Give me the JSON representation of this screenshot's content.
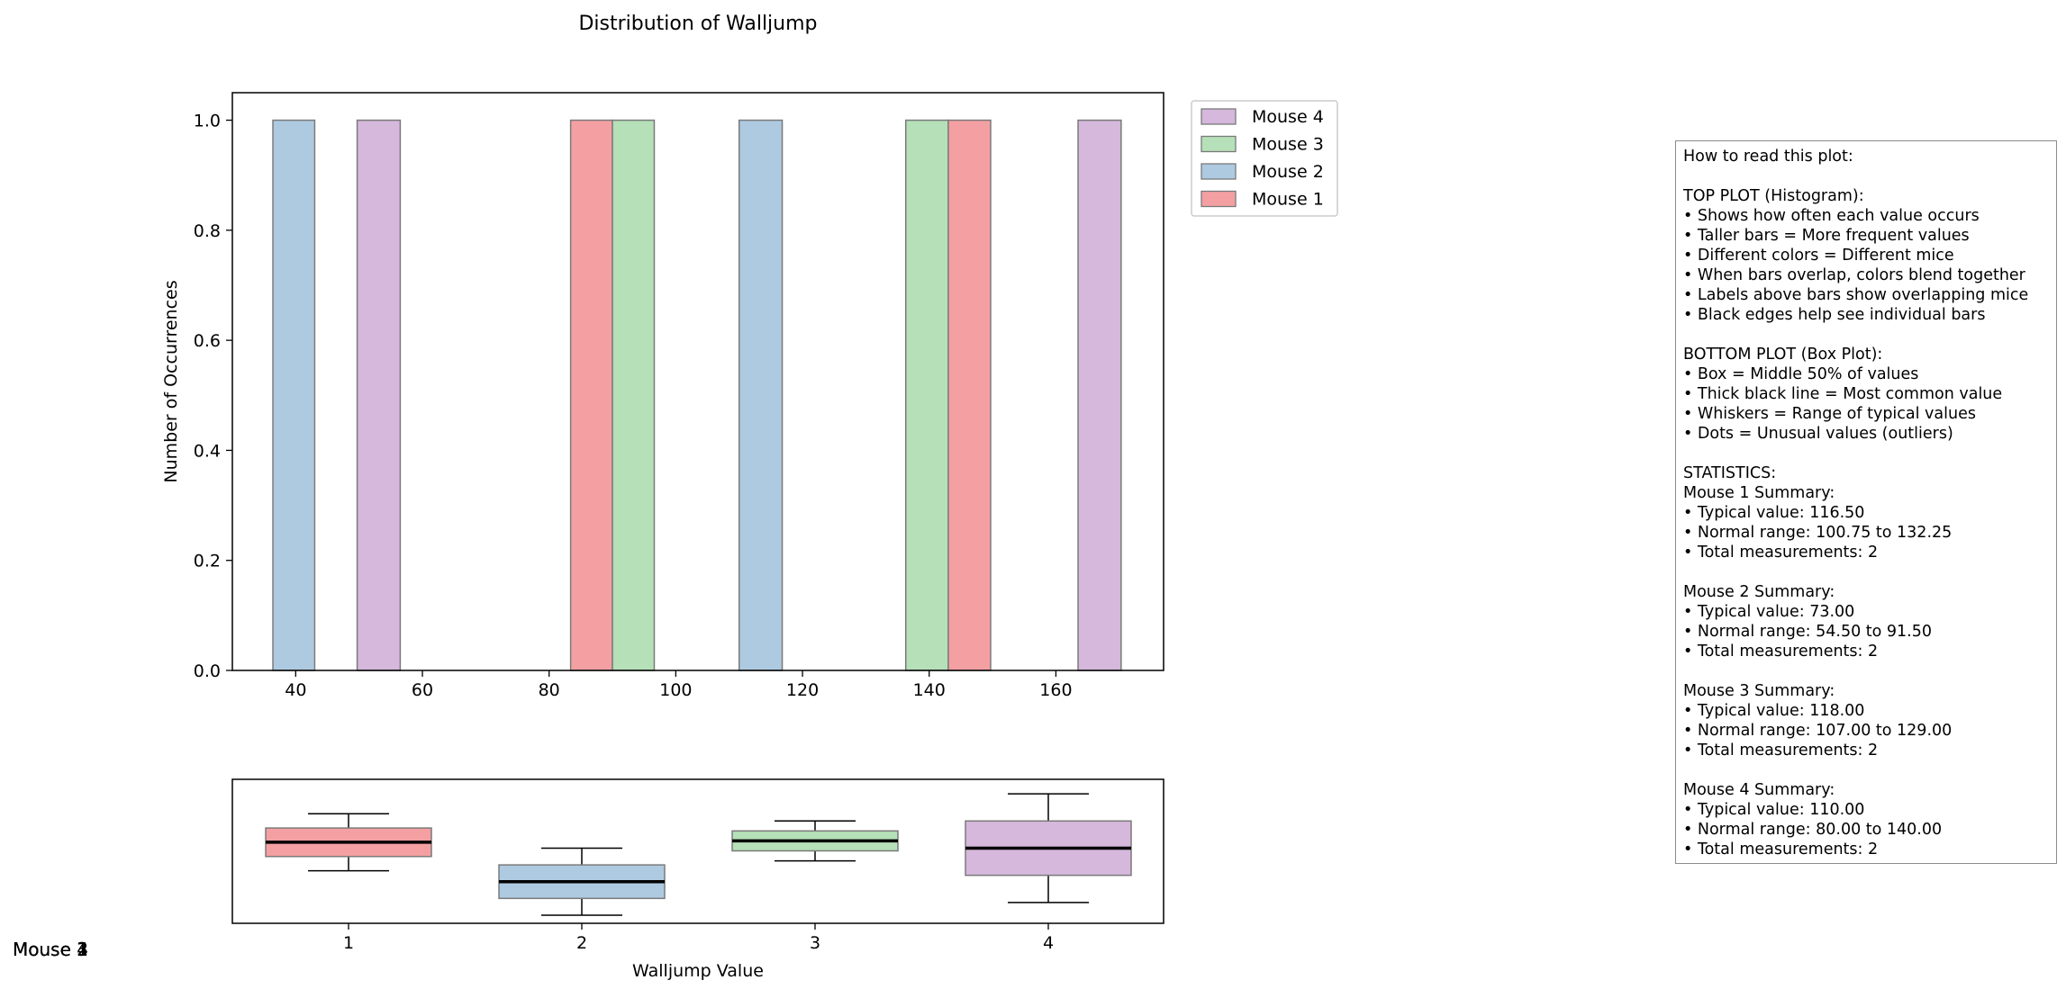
{
  "chart_data": [
    {
      "type": "bar",
      "title": "Distribution of Walljump",
      "ylabel": "Number of Occurrences",
      "xlim": [
        30,
        177
      ],
      "ylim": [
        0,
        1.05
      ],
      "xticks": [
        40,
        60,
        80,
        100,
        120,
        140,
        160
      ],
      "yticks": [
        "0.0",
        "0.2",
        "0.4",
        "0.6",
        "0.8",
        "1.0"
      ],
      "legend": {
        "placement": "outside top-right",
        "entries": [
          "Mouse 4",
          "Mouse 3",
          "Mouse 2",
          "Mouse 1"
        ]
      },
      "series": [
        {
          "name": "Mouse 1",
          "color": "#f4a0a3",
          "bars": [
            {
              "x0": 83.4,
              "x1": 90.0,
              "value": 1
            },
            {
              "x0": 143.0,
              "x1": 149.7,
              "value": 1
            }
          ]
        },
        {
          "name": "Mouse 2",
          "color": "#aecae1",
          "bars": [
            {
              "x0": 36.4,
              "x1": 43.0,
              "value": 1
            },
            {
              "x0": 110.0,
              "x1": 116.8,
              "value": 1
            }
          ]
        },
        {
          "name": "Mouse 3",
          "color": "#b5e0b8",
          "bars": [
            {
              "x0": 90.0,
              "x1": 96.6,
              "value": 1
            },
            {
              "x0": 136.3,
              "x1": 143.0,
              "value": 1
            }
          ]
        },
        {
          "name": "Mouse 4",
          "color": "#d5b8db",
          "bars": [
            {
              "x0": 49.7,
              "x1": 56.5,
              "value": 1
            },
            {
              "x0": 163.5,
              "x1": 170.3,
              "value": 1
            }
          ]
        }
      ]
    },
    {
      "type": "box",
      "xlabel": "Walljump Value",
      "categories": [
        "1",
        "2",
        "3",
        "4"
      ],
      "boxes": [
        {
          "name": "Mouse 1",
          "color": "#f4a0a3",
          "whisker_low": 85,
          "q1": 100.75,
          "median": 116.5,
          "q3": 132.25,
          "whisker_high": 148
        },
        {
          "name": "Mouse 2",
          "color": "#aecae1",
          "whisker_low": 36,
          "q1": 54.5,
          "median": 73,
          "q3": 91.5,
          "whisker_high": 110
        },
        {
          "name": "Mouse 3",
          "color": "#b5e0b8",
          "whisker_low": 96,
          "q1": 107,
          "median": 118,
          "q3": 129,
          "whisker_high": 140
        },
        {
          "name": "Mouse 4",
          "color": "#d5b8db",
          "whisker_low": 50,
          "q1": 80,
          "median": 110,
          "q3": 140,
          "whisker_high": 170
        }
      ],
      "ylim": [
        27,
        186
      ]
    }
  ],
  "info_lines": [
    "How to read this plot:",
    "",
    "TOP PLOT (Histogram):",
    "• Shows how often each value occurs",
    "• Taller bars = More frequent values",
    "• Different colors = Different mice",
    "• When bars overlap, colors blend together",
    "• Labels above bars show overlapping mice",
    "• Black edges help see individual bars",
    "",
    "BOTTOM PLOT (Box Plot):",
    "• Box = Middle 50% of values",
    "• Thick black line = Most common value",
    "• Whiskers = Range of typical values",
    "• Dots = Unusual values (outliers)",
    "",
    "STATISTICS:",
    "Mouse 1 Summary:",
    "• Typical value: 116.50",
    "• Normal range: 100.75 to 132.25",
    "• Total measurements: 2",
    "",
    "Mouse 2 Summary:",
    "• Typical value: 73.00",
    "• Normal range: 54.50 to 91.50",
    "• Total measurements: 2",
    "",
    "Mouse 3 Summary:",
    "• Typical value: 118.00",
    "• Normal range: 107.00 to 129.00",
    "• Total measurements: 2",
    "",
    "Mouse 4 Summary:",
    "• Typical value: 110.00",
    "• Normal range: 80.00 to 140.00",
    "• Total measurements: 2"
  ],
  "overlap_labels": [
    "Mouse 1",
    "Mouse 2",
    "Mouse 3",
    "Mouse 4"
  ]
}
